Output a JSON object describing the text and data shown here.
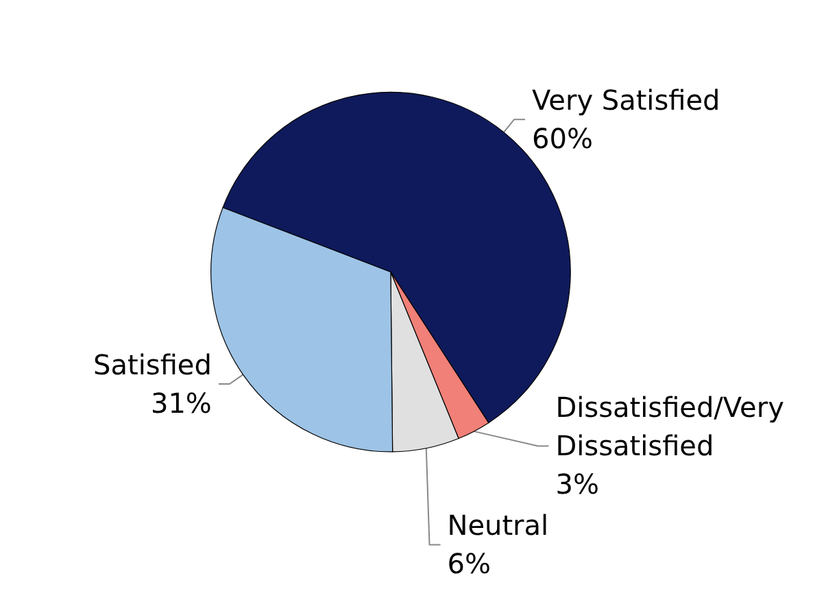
{
  "chart_data": {
    "type": "pie",
    "categories": [
      "Very Satisfied",
      "Dissatisfied/Very Dissatisfied",
      "Neutral",
      "Satisfied"
    ],
    "values": [
      60,
      3,
      6,
      31
    ],
    "colors": [
      "#0f1a5c",
      "#f08078",
      "#e0e0e0",
      "#9dc3e6"
    ],
    "legend": false,
    "value_labels": [
      "60%",
      "3%",
      "6%",
      "31%"
    ]
  }
}
